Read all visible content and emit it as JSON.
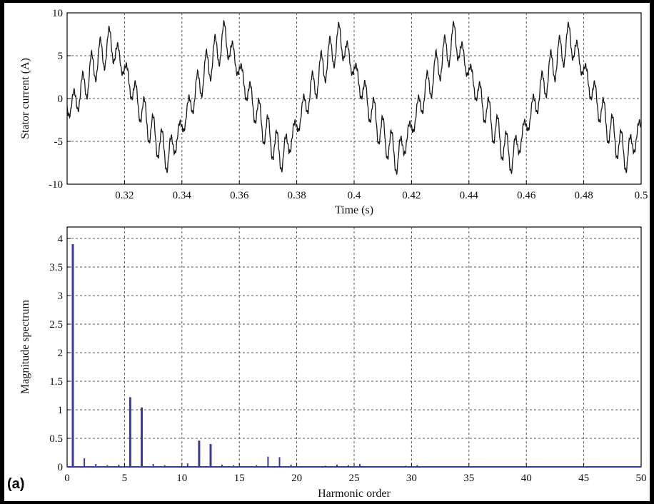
{
  "figure": {
    "panel_label": "(a)"
  },
  "chart_data": [
    {
      "type": "line",
      "xlabel": "Time (s)",
      "ylabel": "Stator current (A)",
      "xlim": [
        0.3,
        0.5
      ],
      "ylim": [
        -10,
        10
      ],
      "xticks": [
        0.32,
        0.34,
        0.36,
        0.38,
        0.4,
        0.42,
        0.44,
        0.46,
        0.48,
        0.5
      ],
      "xtick_labels": [
        "0.32",
        "0.34",
        "0.36",
        "0.38",
        "0.4",
        "0.42",
        "0.44",
        "0.46",
        "0.48",
        "0.5"
      ],
      "yticks": [
        -10,
        -5,
        0,
        5,
        10
      ],
      "ytick_labels": [
        "-10",
        "-5",
        "0",
        "5",
        "10"
      ],
      "grid": true,
      "grid_style": "dotted",
      "line_color": "#1a1a1a",
      "series": [
        {
          "fundamental_frequency_hz": 25,
          "peak_amplitude": 7.5,
          "x": [
            0.3,
            0.3025,
            0.305,
            0.3075,
            0.31,
            0.3125,
            0.315,
            0.3175,
            0.32,
            0.3225,
            0.325,
            0.3275,
            0.33,
            0.3325,
            0.335,
            0.3375,
            0.34,
            0.3425,
            0.345,
            0.3475,
            0.35,
            0.3525,
            0.355,
            0.3575,
            0.36,
            0.3625,
            0.365,
            0.3675,
            0.37,
            0.3725,
            0.375,
            0.3775,
            0.38,
            0.3825,
            0.385,
            0.3875,
            0.39,
            0.3925,
            0.395,
            0.3975,
            0.4,
            0.4025,
            0.405,
            0.4075,
            0.41,
            0.4125,
            0.415,
            0.4175,
            0.42,
            0.4225,
            0.425,
            0.4275,
            0.43,
            0.4325,
            0.435,
            0.4375,
            0.44,
            0.4425,
            0.445,
            0.4475,
            0.45,
            0.4525,
            0.455,
            0.4575,
            0.46,
            0.4625,
            0.465,
            0.4675,
            0.47,
            0.4725,
            0.475,
            0.4775,
            0.48,
            0.4825,
            0.485,
            0.4875,
            0.49,
            0.4925,
            0.495,
            0.4975,
            0.5
          ],
          "y": [
            -1.2,
            -0.4,
            0.8,
            2.5,
            4.3,
            5.2,
            6.6,
            5.0,
            3.5,
            1.2,
            -0.6,
            -2.4,
            -4.1,
            -5.3,
            -6.9,
            -5.1,
            -3.3,
            -1.1,
            0.9,
            2.7,
            4.4,
            5.6,
            7.3,
            5.2,
            3.4,
            1.1,
            -0.7,
            -2.6,
            -4.2,
            -5.5,
            -6.8,
            -5.0,
            -3.3,
            -1.0,
            0.8,
            2.6,
            4.2,
            5.4,
            7.1,
            5.2,
            3.4,
            1.3,
            -0.6,
            -2.5,
            -4.3,
            -5.4,
            -7.1,
            -5.2,
            -3.4,
            -1.1,
            0.9,
            2.6,
            4.4,
            5.5,
            7.2,
            5.1,
            3.3,
            1.1,
            -0.7,
            -2.4,
            -4.2,
            -5.6,
            -7.0,
            -5.1,
            -3.2,
            -1.0,
            0.8,
            2.7,
            4.3,
            5.5,
            7.1,
            5.3,
            3.4,
            1.2,
            -0.6,
            -2.5,
            -4.1,
            -5.4,
            -6.9,
            -5.0,
            -3.3
          ]
        }
      ]
    },
    {
      "type": "bar",
      "xlabel": "Harmonic order",
      "ylabel": "Magnitude spectrum",
      "xlim": [
        0,
        50
      ],
      "ylim": [
        0,
        4.2
      ],
      "xticks": [
        0,
        5,
        10,
        15,
        20,
        25,
        30,
        35,
        40,
        45,
        50
      ],
      "xtick_labels": [
        "0",
        "5",
        "10",
        "15",
        "20",
        "25",
        "30",
        "35",
        "40",
        "45",
        "50"
      ],
      "yticks": [
        0,
        0.5,
        1,
        1.5,
        2,
        2.5,
        3,
        3.5,
        4
      ],
      "ytick_labels": [
        "0",
        "0.5",
        "1",
        "1.5",
        "2",
        "2.5",
        "3",
        "3.5",
        "4"
      ],
      "grid": true,
      "grid_style": "dotted",
      "bar_color": "#3a3aa0",
      "series": [
        {
          "x": [
            0.5,
            1.5,
            2.5,
            3.5,
            4.5,
            5.5,
            6.5,
            7.5,
            8.5,
            10.5,
            11.5,
            12.5,
            13.5,
            14.5,
            16.5,
            17.5,
            18.5,
            19.5,
            22.5,
            23.5,
            24.5,
            25.5,
            29.5,
            30.5
          ],
          "values": [
            3.9,
            0.15,
            0.05,
            0.03,
            0.04,
            1.22,
            1.04,
            0.05,
            0.03,
            0.06,
            0.46,
            0.4,
            0.04,
            0.03,
            0.03,
            0.18,
            0.17,
            0.04,
            0.02,
            0.04,
            0.03,
            0.05,
            0.02,
            0.03
          ]
        }
      ]
    }
  ]
}
